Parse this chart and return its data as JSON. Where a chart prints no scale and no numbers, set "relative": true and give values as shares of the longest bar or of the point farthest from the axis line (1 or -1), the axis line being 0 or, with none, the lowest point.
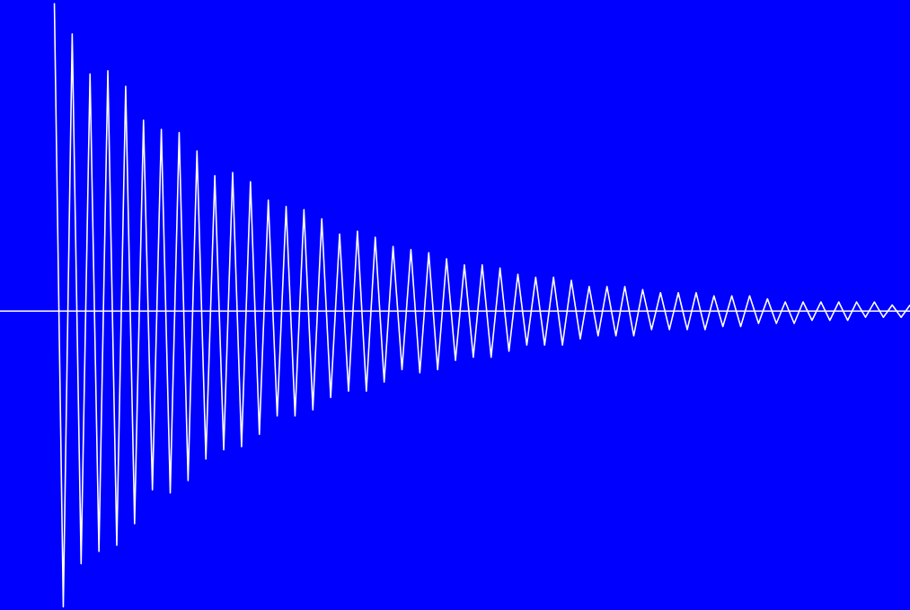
{
  "chart_data": {
    "type": "line",
    "relative": true,
    "color": "#ffffff",
    "categories": [
      null,
      null,
      null,
      null,
      null,
      null,
      null,
      null,
      null,
      null,
      null,
      null,
      null,
      null,
      null,
      null,
      null,
      null,
      null,
      null,
      null,
      null,
      null,
      null,
      null,
      null,
      null,
      null,
      null,
      null,
      null,
      null,
      null,
      null,
      null,
      null,
      null,
      null,
      null,
      null,
      null,
      null,
      null,
      null,
      null,
      null,
      null,
      null,
      null,
      null,
      null,
      null,
      null,
      null,
      null,
      null,
      null,
      null,
      null,
      null,
      null,
      null,
      null,
      null,
      null,
      null,
      null,
      null,
      null,
      null,
      null,
      null,
      null,
      null,
      null,
      null,
      null,
      null,
      null,
      null,
      null,
      null,
      null,
      null,
      null,
      null,
      null,
      null,
      null,
      null,
      null,
      null,
      null,
      null,
      null,
      null,
      null
    ],
    "values": [
      1.0,
      -0.96,
      0.9,
      -0.82,
      0.77,
      -0.78,
      0.78,
      -0.76,
      0.73,
      -0.69,
      0.62,
      -0.58,
      0.59,
      -0.59,
      0.58,
      -0.55,
      0.52,
      -0.48,
      0.44,
      -0.45,
      0.45,
      -0.44,
      0.42,
      -0.4,
      0.36,
      -0.34,
      0.34,
      -0.34,
      0.33,
      -0.32,
      0.3,
      -0.28,
      0.25,
      -0.26,
      0.26,
      -0.26,
      0.24,
      -0.23,
      0.21,
      -0.19,
      0.2,
      -0.2,
      0.19,
      -0.19,
      0.17,
      -0.16,
      0.15,
      -0.15,
      0.15,
      -0.15,
      0.14,
      -0.13,
      0.12,
      -0.11,
      0.11,
      -0.11,
      0.11,
      -0.11,
      0.1,
      -0.09,
      0.08,
      -0.08,
      0.08,
      -0.08,
      0.08,
      -0.08,
      0.07,
      -0.06,
      0.06,
      -0.06,
      0.06,
      -0.06,
      0.06,
      -0.06,
      0.05,
      -0.05,
      0.05,
      -0.05,
      0.05,
      -0.04,
      0.04,
      -0.04,
      0.03,
      -0.04,
      0.03,
      -0.03,
      0.03,
      -0.03,
      0.03,
      -0.03,
      0.03,
      -0.02,
      0.03,
      -0.02,
      0.02,
      -0.02,
      0.02
    ]
  }
}
